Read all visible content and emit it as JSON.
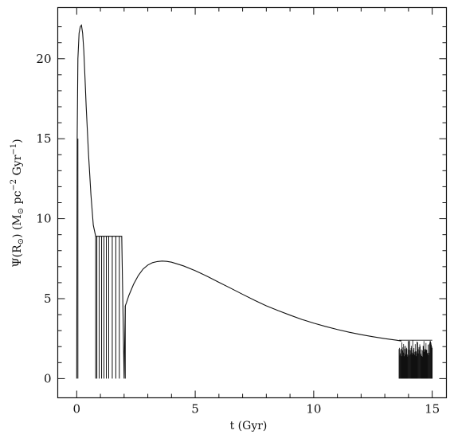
{
  "chart_data": {
    "type": "line",
    "xlabel_parts": [
      "t",
      "(Gyr)"
    ],
    "ylabel_parts": [
      "Ψ(R",
      "⊙",
      ")",
      "(M",
      "⊙",
      " pc",
      "−2",
      " Gyr",
      "−1",
      ")"
    ],
    "xlim": [
      -0.8,
      15.6
    ],
    "ylim": [
      -1.2,
      23.2
    ],
    "x_ticks": [
      0,
      5,
      10,
      15
    ],
    "y_ticks": [
      0,
      5,
      10,
      15,
      20
    ],
    "grid": false,
    "series": [
      {
        "x": [
          0.0,
          0.02,
          0.05,
          0.1,
          0.15,
          0.2,
          0.25,
          0.3,
          0.35,
          0.4,
          0.5,
          0.6,
          0.7,
          0.8,
          0.9,
          1.0,
          1.1,
          1.2,
          1.3,
          1.4,
          1.5,
          1.6,
          1.7,
          1.8,
          1.9,
          2.0,
          2.05,
          2.1,
          2.2,
          2.4,
          2.6,
          2.8,
          3.0,
          3.2,
          3.4,
          3.6,
          3.8,
          4.0,
          4.5,
          5.0,
          5.5,
          6.0,
          6.5,
          7.0,
          7.5,
          8.0,
          8.5,
          9.0,
          9.5,
          10.0,
          10.5,
          11.0,
          11.5,
          12.0,
          12.5,
          13.0,
          13.5,
          13.7
        ],
        "y": [
          0.0,
          15.0,
          20.0,
          21.6,
          22.0,
          22.1,
          21.6,
          20.5,
          18.8,
          17.0,
          14.0,
          11.5,
          9.6,
          8.9,
          8.9,
          8.9,
          8.9,
          8.9,
          8.9,
          8.9,
          8.9,
          8.9,
          8.9,
          8.9,
          8.9,
          0.0,
          4.55,
          4.75,
          5.2,
          5.9,
          6.45,
          6.85,
          7.1,
          7.25,
          7.32,
          7.35,
          7.33,
          7.28,
          7.05,
          6.75,
          6.4,
          6.02,
          5.65,
          5.27,
          4.9,
          4.55,
          4.25,
          3.97,
          3.7,
          3.47,
          3.26,
          3.07,
          2.9,
          2.75,
          2.62,
          2.5,
          2.4,
          2.35
        ]
      }
    ],
    "vertical_spikes": {
      "x": [
        0.05,
        0.8,
        0.85,
        0.95,
        1.05,
        1.15,
        1.25,
        1.35,
        1.5,
        1.65,
        1.8,
        2.0,
        2.05
      ],
      "y_top": [
        15.0,
        8.9,
        8.9,
        8.9,
        8.9,
        8.9,
        8.9,
        8.9,
        8.9,
        8.9,
        8.9,
        0.0,
        4.55
      ]
    },
    "noise_region": {
      "x_range": [
        13.6,
        15.0
      ],
      "y_range": [
        0.0,
        2.4
      ]
    }
  }
}
